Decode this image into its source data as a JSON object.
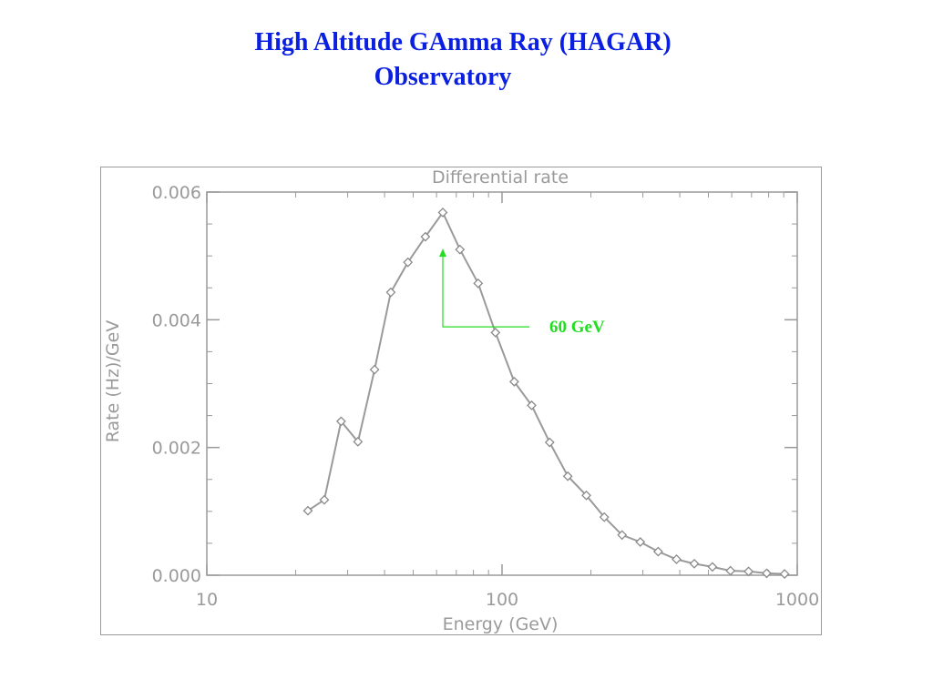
{
  "slide": {
    "title_line1": "High Altitude GAmma Ray (HAGAR)",
    "title_line2": "Observatory"
  },
  "chart_data": {
    "type": "line",
    "title": "Differential rate",
    "xlabel": "Energy (GeV)",
    "ylabel": "Rate (Hz)/GeV",
    "x_scale": "log",
    "xlim": [
      10,
      1000
    ],
    "ylim": [
      0,
      0.006
    ],
    "x_ticks": [
      {
        "value": 10,
        "label": "10"
      },
      {
        "value": 100,
        "label": "100"
      },
      {
        "value": 1000,
        "label": "1000"
      }
    ],
    "y_ticks": [
      {
        "value": 0,
        "label": "0.000"
      },
      {
        "value": 0.002,
        "label": "0.002"
      },
      {
        "value": 0.004,
        "label": "0.004"
      },
      {
        "value": 0.006,
        "label": "0.006"
      }
    ],
    "grid": false,
    "colors": {
      "series": "#9a9a9a",
      "axes": "#9a9a9a",
      "annotation": "#22dd22"
    },
    "series": [
      {
        "marker": "diamond",
        "x": [
          22,
          25,
          28.5,
          32.5,
          37,
          42,
          48,
          55,
          63,
          72,
          83,
          95,
          110,
          126,
          145,
          167,
          193,
          222,
          255,
          294,
          338,
          390,
          448,
          516,
          594,
          684,
          788,
          906
        ],
        "y": [
          0.00101,
          0.00118,
          0.00241,
          0.00209,
          0.00322,
          0.00443,
          0.0049,
          0.0053,
          0.00568,
          0.0051,
          0.00457,
          0.0038,
          0.00303,
          0.00266,
          0.00208,
          0.00155,
          0.00125,
          0.00091,
          0.00063,
          0.00052,
          0.00037,
          0.00025,
          0.00018,
          0.00013,
          7e-05,
          6e-05,
          3e-05,
          2e-05
        ]
      }
    ],
    "annotations": [
      {
        "text": "60 GeV",
        "target_x": 63,
        "target_y": 0.0052
      }
    ]
  }
}
